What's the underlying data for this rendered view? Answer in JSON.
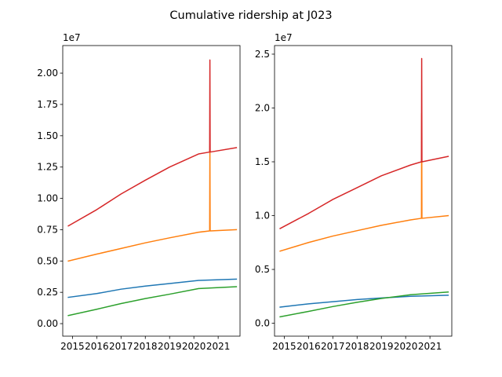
{
  "title": "Cumulative ridership at J023",
  "chart_data": [
    {
      "type": "line",
      "title": "",
      "xlabel": "",
      "ylabel": "",
      "offset_label": "1e7",
      "xlim": [
        2014.6,
        2021.9
      ],
      "ylim": [
        -1.0,
        22.2
      ],
      "x_ticks": [
        2015,
        2016,
        2017,
        2018,
        2019,
        2020,
        2021
      ],
      "x_tick_labels": [
        "2015",
        "2016",
        "2017",
        "2018",
        "2019",
        "2020",
        "2021"
      ],
      "y_ticks": [
        0.0,
        2.5,
        5.0,
        7.5,
        10.0,
        12.5,
        15.0,
        17.5,
        20.0
      ],
      "y_tick_labels": [
        "0.00",
        "0.25",
        "0.50",
        "0.75",
        "1.00",
        "1.25",
        "1.50",
        "1.75",
        "2.00"
      ],
      "grid": false,
      "series": [
        {
          "color": "#1f77b4",
          "x": [
            2014.83,
            2016.0,
            2017.0,
            2018.0,
            2019.0,
            2020.2,
            2021.75
          ],
          "y": [
            2.1,
            2.4,
            2.75,
            3.0,
            3.2,
            3.45,
            3.55
          ]
        },
        {
          "color": "#ff7f0e",
          "x": [
            2014.83,
            2016.0,
            2017.0,
            2018.0,
            2019.0,
            2020.2,
            2020.65,
            2020.66,
            2020.67,
            2020.68,
            2021.75
          ],
          "y": [
            5.0,
            5.55,
            6.0,
            6.45,
            6.85,
            7.3,
            7.4,
            14.2,
            7.45,
            7.4,
            7.5
          ]
        },
        {
          "color": "#2ca02c",
          "x": [
            2014.83,
            2016.0,
            2017.0,
            2018.0,
            2019.0,
            2020.2,
            2021.75
          ],
          "y": [
            0.65,
            1.15,
            1.6,
            2.0,
            2.35,
            2.8,
            2.95
          ]
        },
        {
          "color": "#d62728",
          "x": [
            2014.83,
            2016.0,
            2017.0,
            2018.0,
            2019.0,
            2020.2,
            2020.65,
            2020.66,
            2020.67,
            2020.68,
            2021.75
          ],
          "y": [
            7.8,
            9.1,
            10.35,
            11.45,
            12.5,
            13.55,
            13.7,
            21.05,
            13.75,
            13.7,
            14.05
          ]
        }
      ]
    },
    {
      "type": "line",
      "title": "",
      "xlabel": "",
      "ylabel": "",
      "offset_label": "1e7",
      "xlim": [
        2014.6,
        2021.9
      ],
      "ylim": [
        -0.12,
        2.58
      ],
      "x_ticks": [
        2015,
        2016,
        2017,
        2018,
        2019,
        2020,
        2021
      ],
      "x_tick_labels": [
        "2015",
        "2016",
        "2017",
        "2018",
        "2019",
        "2020",
        "2021"
      ],
      "y_ticks": [
        0.0,
        0.5,
        1.0,
        1.5,
        2.0,
        2.5
      ],
      "y_tick_labels": [
        "0.0",
        "0.5",
        "1.0",
        "1.5",
        "2.0",
        "2.5"
      ],
      "grid": false,
      "series": [
        {
          "color": "#1f77b4",
          "x": [
            2014.83,
            2016.0,
            2017.0,
            2018.0,
            2019.0,
            2020.2,
            2021.75
          ],
          "y": [
            0.15,
            0.18,
            0.2,
            0.22,
            0.235,
            0.25,
            0.26
          ]
        },
        {
          "color": "#ff7f0e",
          "x": [
            2014.83,
            2016.0,
            2017.0,
            2018.0,
            2019.0,
            2020.2,
            2020.65,
            2020.66,
            2020.67,
            2020.68,
            2021.75
          ],
          "y": [
            0.67,
            0.75,
            0.81,
            0.86,
            0.91,
            0.96,
            0.975,
            1.95,
            0.98,
            0.975,
            1.0
          ]
        },
        {
          "color": "#2ca02c",
          "x": [
            2014.83,
            2016.0,
            2017.0,
            2018.0,
            2019.0,
            2020.2,
            2021.75
          ],
          "y": [
            0.06,
            0.11,
            0.155,
            0.195,
            0.23,
            0.265,
            0.29
          ]
        },
        {
          "color": "#d62728",
          "x": [
            2014.83,
            2016.0,
            2017.0,
            2018.0,
            2019.0,
            2020.2,
            2020.65,
            2020.66,
            2020.67,
            2020.68,
            2021.75
          ],
          "y": [
            0.88,
            1.02,
            1.15,
            1.26,
            1.37,
            1.47,
            1.5,
            2.46,
            1.5,
            1.5,
            1.55
          ]
        }
      ]
    }
  ]
}
